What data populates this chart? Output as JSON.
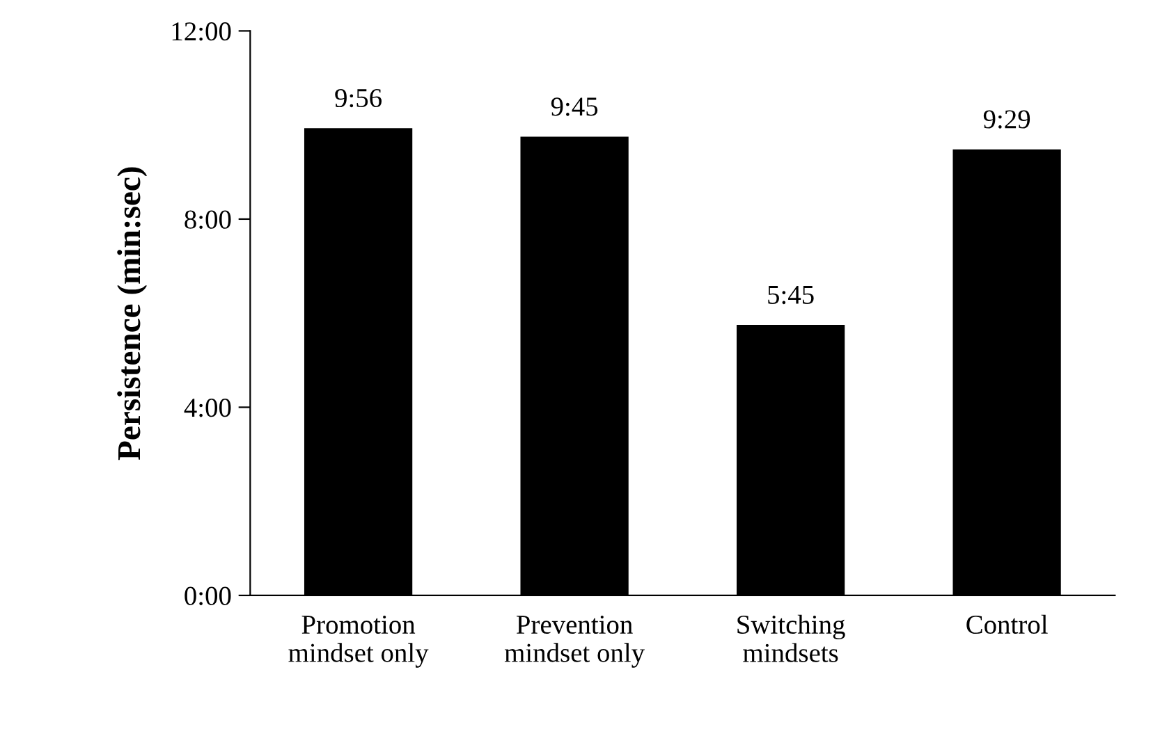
{
  "chart_data": {
    "type": "bar",
    "ylabel": "Persistence (min:sec)",
    "categories": [
      "Promotion\nmindset only",
      "Prevention\nmindset only",
      "Switching\nmindsets",
      "Control"
    ],
    "values": [
      9.933,
      9.75,
      5.75,
      9.483
    ],
    "value_labels": [
      "9:56",
      "9:45",
      "5:45",
      "9:29"
    ],
    "color": "#000000",
    "ylim": [
      0,
      12
    ],
    "yticks": [
      {
        "value": 0,
        "label": "0:00"
      },
      {
        "value": 4,
        "label": "4:00"
      },
      {
        "value": 8,
        "label": "8:00"
      },
      {
        "value": 12,
        "label": "12:00"
      }
    ],
    "grid": false,
    "legend": false
  }
}
